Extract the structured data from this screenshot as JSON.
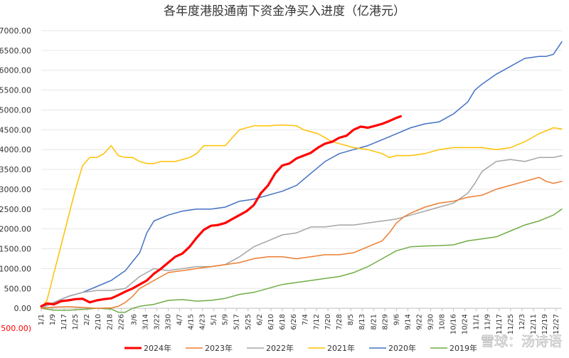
{
  "chart_data": {
    "type": "line",
    "title": "各年度港股通南下资金净买入进度（亿港元）",
    "xlabel": "",
    "ylabel": "",
    "ylim": [
      -500,
      7000
    ],
    "y_ticks": [
      "(500.00)",
      "0.00",
      "500.00",
      "1000.00",
      "1500.00",
      "2000.00",
      "2500.00",
      "3000.00",
      "3500.00",
      "4000.00",
      "4500.00",
      "5000.00",
      "5500.00",
      "6000.00",
      "6500.00",
      "7000.00"
    ],
    "y_tick_values": [
      -500,
      0,
      500,
      1000,
      1500,
      2000,
      2500,
      3000,
      3500,
      4000,
      4500,
      5000,
      5500,
      6000,
      6500,
      7000
    ],
    "x_ticks": [
      "1/1",
      "1/9",
      "1/17",
      "1/25",
      "2/2",
      "2/10",
      "2/18",
      "2/26",
      "3/6",
      "3/14",
      "3/22",
      "3/30",
      "4/7",
      "4/15",
      "4/23",
      "5/1",
      "5/9",
      "5/17",
      "5/25",
      "6/2",
      "6/10",
      "6/18",
      "6/26",
      "7/4",
      "7/12",
      "7/20",
      "7/28",
      "8/5",
      "8/13",
      "8/21",
      "8/29",
      "9/6",
      "9/14",
      "9/22",
      "9/30",
      "10/8",
      "10/16",
      "10/24",
      "11/1",
      "11/9",
      "11/17",
      "11/25",
      "12/3",
      "12/11",
      "12/19",
      "12/27"
    ],
    "x_tick_days": [
      1,
      9,
      17,
      25,
      33,
      41,
      49,
      57,
      66,
      74,
      82,
      90,
      98,
      106,
      114,
      122,
      130,
      138,
      146,
      154,
      162,
      170,
      178,
      186,
      194,
      202,
      210,
      218,
      226,
      234,
      242,
      250,
      258,
      266,
      274,
      282,
      290,
      298,
      306,
      314,
      322,
      330,
      338,
      346,
      354,
      362
    ],
    "x_domain": [
      1,
      366
    ],
    "grid": true,
    "legend_position": "bottom",
    "series": [
      {
        "name": "2024年",
        "color": "#ff0000",
        "width": 3.2,
        "x": [
          1,
          5,
          10,
          15,
          20,
          25,
          30,
          35,
          40,
          45,
          50,
          55,
          60,
          65,
          70,
          75,
          80,
          85,
          90,
          95,
          100,
          105,
          110,
          115,
          120,
          125,
          130,
          135,
          140,
          145,
          150,
          155,
          160,
          165,
          170,
          175,
          180,
          185,
          190,
          195,
          200,
          205,
          210,
          215,
          220,
          225,
          230,
          235,
          240,
          245,
          250,
          253
        ],
        "y": [
          50,
          120,
          100,
          180,
          200,
          230,
          240,
          150,
          200,
          230,
          250,
          330,
          420,
          500,
          600,
          700,
          870,
          1000,
          1150,
          1300,
          1380,
          1550,
          1780,
          1980,
          2080,
          2100,
          2150,
          2250,
          2350,
          2450,
          2600,
          2900,
          3100,
          3400,
          3600,
          3650,
          3780,
          3850,
          3920,
          4050,
          4150,
          4200,
          4300,
          4350,
          4500,
          4580,
          4550,
          4600,
          4650,
          4720,
          4800,
          4840
        ]
      },
      {
        "name": "2023年",
        "color": "#ed7d31",
        "width": 1.5,
        "x": [
          1,
          10,
          20,
          30,
          40,
          50,
          55,
          60,
          65,
          70,
          80,
          90,
          100,
          110,
          120,
          130,
          140,
          150,
          160,
          170,
          180,
          190,
          200,
          210,
          220,
          230,
          240,
          245,
          250,
          255,
          260,
          270,
          280,
          290,
          300,
          310,
          320,
          330,
          340,
          345,
          350,
          355,
          360,
          366
        ],
        "y": [
          0,
          30,
          40,
          20,
          0,
          10,
          50,
          150,
          300,
          500,
          700,
          900,
          950,
          1000,
          1050,
          1100,
          1150,
          1250,
          1300,
          1300,
          1250,
          1300,
          1350,
          1350,
          1400,
          1550,
          1700,
          1900,
          2150,
          2300,
          2400,
          2550,
          2650,
          2700,
          2800,
          2850,
          3000,
          3100,
          3200,
          3250,
          3300,
          3200,
          3150,
          3200
        ]
      },
      {
        "name": "2022年",
        "color": "#a5a5a5",
        "width": 1.5,
        "x": [
          1,
          10,
          20,
          30,
          40,
          50,
          60,
          70,
          80,
          90,
          100,
          110,
          120,
          130,
          140,
          150,
          160,
          170,
          180,
          190,
          200,
          210,
          220,
          230,
          240,
          250,
          260,
          270,
          280,
          290,
          300,
          305,
          310,
          320,
          330,
          340,
          350,
          360,
          366
        ],
        "y": [
          0,
          150,
          300,
          400,
          450,
          450,
          500,
          800,
          1000,
          950,
          1000,
          1050,
          1050,
          1100,
          1300,
          1550,
          1700,
          1850,
          1900,
          2050,
          2050,
          2100,
          2100,
          2150,
          2200,
          2250,
          2350,
          2450,
          2550,
          2650,
          2900,
          3150,
          3450,
          3700,
          3750,
          3700,
          3800,
          3800,
          3850
        ]
      },
      {
        "name": "2021年",
        "color": "#ffc000",
        "width": 1.5,
        "x": [
          1,
          5,
          10,
          15,
          20,
          25,
          30,
          35,
          40,
          45,
          50,
          55,
          60,
          65,
          70,
          75,
          80,
          85,
          90,
          95,
          100,
          105,
          110,
          115,
          120,
          125,
          130,
          140,
          150,
          160,
          170,
          180,
          185,
          190,
          195,
          200,
          205,
          210,
          215,
          220,
          230,
          240,
          245,
          250,
          260,
          270,
          280,
          290,
          300,
          310,
          320,
          330,
          340,
          350,
          360,
          366
        ],
        "y": [
          0,
          200,
          900,
          1600,
          2300,
          3000,
          3600,
          3800,
          3800,
          3900,
          4100,
          3850,
          3800,
          3800,
          3700,
          3650,
          3650,
          3700,
          3700,
          3700,
          3750,
          3800,
          3900,
          4100,
          4100,
          4100,
          4100,
          4500,
          4600,
          4600,
          4620,
          4600,
          4500,
          4450,
          4400,
          4300,
          4200,
          4150,
          4100,
          4050,
          4000,
          3900,
          3800,
          3850,
          3850,
          3900,
          4000,
          4050,
          4050,
          4050,
          4000,
          4050,
          4200,
          4400,
          4550,
          4520
        ]
      },
      {
        "name": "2020年",
        "color": "#4472c4",
        "width": 1.5,
        "x": [
          1,
          10,
          20,
          30,
          40,
          50,
          60,
          70,
          75,
          80,
          90,
          100,
          110,
          120,
          130,
          140,
          150,
          160,
          170,
          180,
          190,
          200,
          210,
          220,
          230,
          240,
          250,
          260,
          270,
          280,
          290,
          300,
          305,
          310,
          320,
          330,
          340,
          350,
          355,
          360,
          366
        ],
        "y": [
          0,
          150,
          300,
          400,
          550,
          700,
          950,
          1400,
          1900,
          2200,
          2350,
          2450,
          2500,
          2500,
          2550,
          2700,
          2750,
          2850,
          2950,
          3100,
          3400,
          3700,
          3900,
          4000,
          4100,
          4250,
          4400,
          4550,
          4650,
          4700,
          4900,
          5200,
          5500,
          5650,
          5900,
          6100,
          6300,
          6350,
          6350,
          6400,
          6720
        ]
      },
      {
        "name": "2019年",
        "color": "#70ad47",
        "width": 1.5,
        "x": [
          1,
          10,
          20,
          30,
          40,
          50,
          55,
          60,
          65,
          70,
          80,
          90,
          100,
          110,
          120,
          130,
          140,
          150,
          160,
          170,
          180,
          190,
          200,
          210,
          220,
          230,
          240,
          250,
          260,
          270,
          280,
          290,
          300,
          310,
          320,
          330,
          340,
          350,
          360,
          366
        ],
        "y": [
          0,
          -50,
          -50,
          -30,
          0,
          -20,
          -100,
          -100,
          0,
          50,
          100,
          200,
          220,
          180,
          200,
          250,
          350,
          400,
          500,
          600,
          650,
          700,
          750,
          800,
          900,
          1050,
          1250,
          1450,
          1550,
          1570,
          1580,
          1600,
          1700,
          1750,
          1800,
          1950,
          2100,
          2200,
          2350,
          2500
        ]
      }
    ]
  },
  "watermark": {
    "text": "雪球：汤诗语"
  }
}
